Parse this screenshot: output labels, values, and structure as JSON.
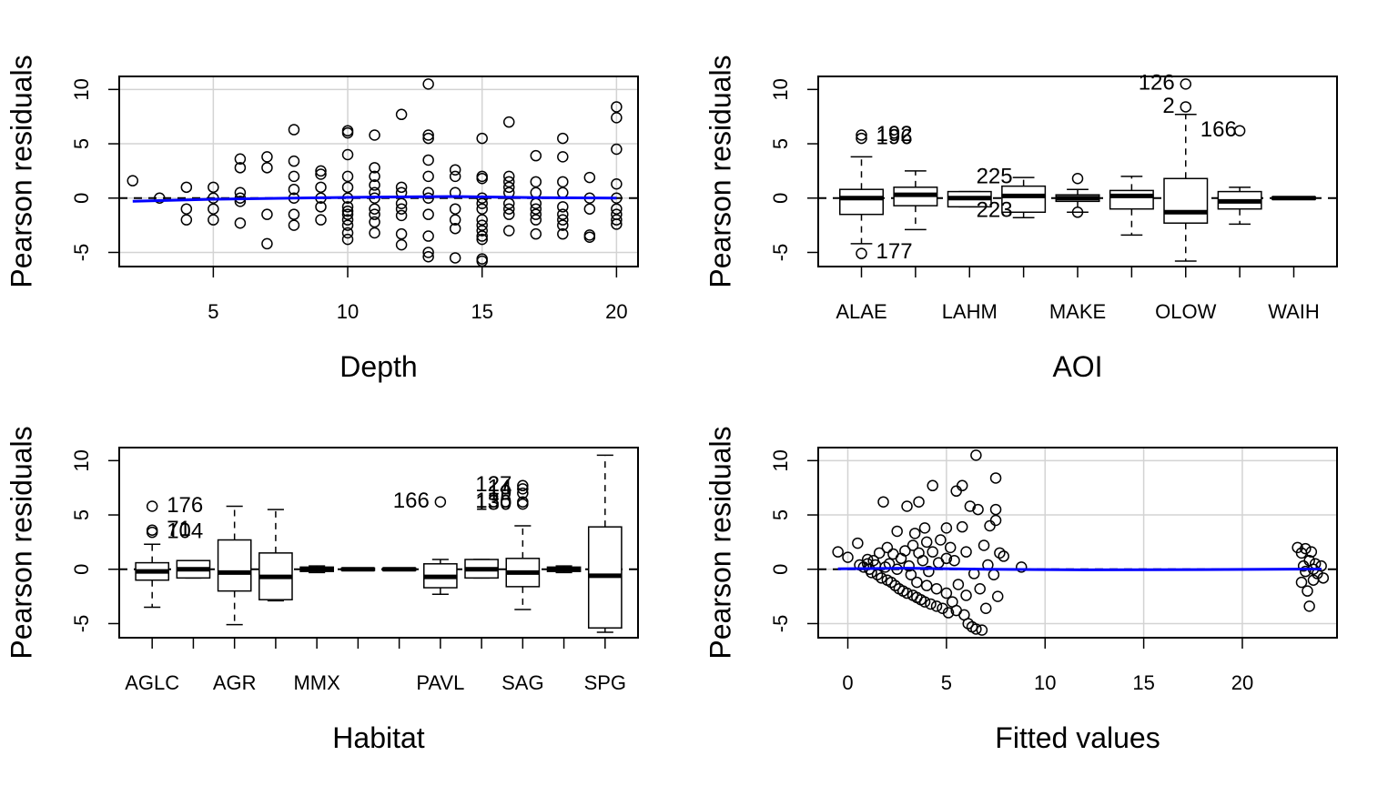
{
  "figure": {
    "background": "#ffffff",
    "point_color": "#000000",
    "smooth_color": "#0000ff",
    "grid_color": "#d3d3d3"
  },
  "chart_data": [
    {
      "type": "scatter",
      "xlabel": "Depth",
      "ylabel": "Pearson residuals",
      "xlim": [
        1.5,
        20.8
      ],
      "ylim": [
        -6.3,
        11.2
      ],
      "xticks": [
        5,
        10,
        15,
        20
      ],
      "yticks": [
        -5,
        0,
        5,
        10
      ],
      "grid": true,
      "reference_line_y": 0,
      "points": [
        [
          2,
          1.6
        ],
        [
          3,
          0
        ],
        [
          4,
          1
        ],
        [
          4,
          -1
        ],
        [
          4,
          -2
        ],
        [
          5,
          1
        ],
        [
          5,
          0
        ],
        [
          5,
          -1
        ],
        [
          5,
          -2
        ],
        [
          6,
          3.6
        ],
        [
          6,
          2.8
        ],
        [
          6,
          0.5
        ],
        [
          6,
          0
        ],
        [
          6,
          -0.3
        ],
        [
          6,
          -2.3
        ],
        [
          7,
          3.8
        ],
        [
          7,
          2.8
        ],
        [
          7,
          -1.5
        ],
        [
          7,
          -4.2
        ],
        [
          8,
          6.3
        ],
        [
          8,
          3.4
        ],
        [
          8,
          2
        ],
        [
          8,
          0.8
        ],
        [
          8,
          0
        ],
        [
          8,
          -1.5
        ],
        [
          8,
          -2.5
        ],
        [
          9,
          2.5
        ],
        [
          9,
          2.2
        ],
        [
          9,
          1
        ],
        [
          9,
          0
        ],
        [
          9,
          -0.8
        ],
        [
          9,
          -2
        ],
        [
          10,
          6.2
        ],
        [
          10,
          6
        ],
        [
          10,
          4
        ],
        [
          10,
          2
        ],
        [
          10,
          1
        ],
        [
          10,
          0
        ],
        [
          10,
          -0.8
        ],
        [
          10,
          -1.2
        ],
        [
          10,
          -1.5
        ],
        [
          10,
          -2
        ],
        [
          10,
          -2.5
        ],
        [
          10,
          -3.2
        ],
        [
          10,
          -3.8
        ],
        [
          11,
          5.8
        ],
        [
          11,
          2.8
        ],
        [
          11,
          2
        ],
        [
          11,
          1.2
        ],
        [
          11,
          0.5
        ],
        [
          11,
          0
        ],
        [
          11,
          -1
        ],
        [
          11,
          -1.5
        ],
        [
          11,
          -2.2
        ],
        [
          11,
          -3.2
        ],
        [
          12,
          7.7
        ],
        [
          12,
          1
        ],
        [
          12,
          0.5
        ],
        [
          12,
          -0.5
        ],
        [
          12,
          -1
        ],
        [
          12,
          -1.6
        ],
        [
          12,
          -3.3
        ],
        [
          12,
          -4.3
        ],
        [
          13,
          10.5
        ],
        [
          13,
          5.8
        ],
        [
          13,
          5.5
        ],
        [
          13,
          3.5
        ],
        [
          13,
          2
        ],
        [
          13,
          0.5
        ],
        [
          13,
          0
        ],
        [
          13,
          -1.5
        ],
        [
          13,
          -3.5
        ],
        [
          13,
          -5
        ],
        [
          13,
          -5.4
        ],
        [
          14,
          2.6
        ],
        [
          14,
          2
        ],
        [
          14,
          0.5
        ],
        [
          14,
          -1
        ],
        [
          14,
          -2
        ],
        [
          14,
          -2.8
        ],
        [
          14,
          -5.5
        ],
        [
          15,
          5.5
        ],
        [
          15,
          2
        ],
        [
          15,
          1.8
        ],
        [
          15,
          0
        ],
        [
          15,
          -0.5
        ],
        [
          15,
          -1
        ],
        [
          15,
          -2
        ],
        [
          15,
          -2.5
        ],
        [
          15,
          -3
        ],
        [
          15,
          -3.5
        ],
        [
          15,
          -3.8
        ],
        [
          15,
          -5.6
        ],
        [
          15,
          -5.8
        ],
        [
          16,
          7
        ],
        [
          16,
          2
        ],
        [
          16,
          1.5
        ],
        [
          16,
          1
        ],
        [
          16,
          0.5
        ],
        [
          16,
          -0.5
        ],
        [
          16,
          -1
        ],
        [
          16,
          -1.5
        ],
        [
          16,
          -3
        ],
        [
          17,
          3.9
        ],
        [
          17,
          1.5
        ],
        [
          17,
          0.5
        ],
        [
          17,
          -0.5
        ],
        [
          17,
          -1
        ],
        [
          17,
          -1.5
        ],
        [
          17,
          -2
        ],
        [
          17,
          -3.3
        ],
        [
          18,
          5.5
        ],
        [
          18,
          3.8
        ],
        [
          18,
          1.5
        ],
        [
          18,
          0.5
        ],
        [
          18,
          -0.8
        ],
        [
          18,
          -1.5
        ],
        [
          18,
          -2
        ],
        [
          18,
          -2.5
        ],
        [
          18,
          -3.3
        ],
        [
          19,
          1.9
        ],
        [
          19,
          0
        ],
        [
          19,
          -1
        ],
        [
          19,
          -3.4
        ],
        [
          19,
          -3.6
        ],
        [
          20,
          8.4
        ],
        [
          20,
          7.4
        ],
        [
          20,
          4.5
        ],
        [
          20,
          1.3
        ],
        [
          20,
          0
        ],
        [
          20,
          -1
        ],
        [
          20,
          -1.5
        ],
        [
          20,
          -2
        ],
        [
          20,
          -2.4
        ]
      ],
      "smooth": [
        [
          2,
          -0.3
        ],
        [
          5,
          -0.1
        ],
        [
          8,
          0
        ],
        [
          11,
          0.1
        ],
        [
          14,
          0.15
        ],
        [
          17,
          0.05
        ],
        [
          20,
          0
        ]
      ]
    },
    {
      "type": "boxplot",
      "xlabel": "AOI",
      "ylabel": "Pearson residuals",
      "ylim": [
        -6.3,
        11.2
      ],
      "yticks": [
        -5,
        0,
        5,
        10
      ],
      "tick_labels": [
        "ALAE",
        "LAHM",
        "MAKE",
        "OLOW",
        "WAIH"
      ],
      "reference_line_y": 0,
      "boxes": [
        {
          "min": -4.2,
          "q1": -1.5,
          "med": 0,
          "q3": 0.8,
          "max": 3.8,
          "out": [
            5.8,
            5.5,
            -5.1
          ]
        },
        {
          "min": -2.9,
          "q1": -0.7,
          "med": 0.3,
          "q3": 1,
          "max": 2.5,
          "out": []
        },
        {
          "min": -0.8,
          "q1": -0.8,
          "med": 0,
          "q3": 0.6,
          "max": 0.6,
          "out": []
        },
        {
          "min": -1.8,
          "q1": -1.3,
          "med": 0.2,
          "q3": 1.1,
          "max": 1.9,
          "out": []
        },
        {
          "min": -1.3,
          "q1": -0.3,
          "med": 0,
          "q3": 0.3,
          "max": 0.8,
          "out": [
            1.8,
            -1.3
          ]
        },
        {
          "min": -3.4,
          "q1": -1,
          "med": 0.2,
          "q3": 0.7,
          "max": 2,
          "out": []
        },
        {
          "min": -5.8,
          "q1": -2.3,
          "med": -1.3,
          "q3": 1.8,
          "max": 7.7,
          "out": [
            10.5,
            8.4
          ]
        },
        {
          "min": -2.4,
          "q1": -1,
          "med": -0.3,
          "q3": 0.6,
          "max": 1,
          "out": [
            6.2
          ]
        },
        {
          "min": -0.1,
          "q1": -0.1,
          "med": 0,
          "q3": 0.1,
          "max": 0.1,
          "out": []
        }
      ],
      "labels": [
        {
          "box": 1,
          "y": 5.8,
          "text": "192",
          "align": "start"
        },
        {
          "box": 1,
          "y": 5.5,
          "text": "196",
          "align": "start"
        },
        {
          "box": 1,
          "y": -5,
          "text": "177",
          "align": "start"
        },
        {
          "box": 4,
          "y": 1.9,
          "text": "225",
          "align": "end"
        },
        {
          "box": 4,
          "y": -1.2,
          "text": "223",
          "align": "end"
        },
        {
          "box": 7,
          "y": 10.5,
          "text": "126",
          "align": "end-far"
        },
        {
          "box": 7,
          "y": 8.4,
          "text": "2",
          "align": "end"
        },
        {
          "box": 7,
          "y": 6.2,
          "text": "166",
          "align": "start"
        }
      ]
    },
    {
      "type": "boxplot",
      "xlabel": "Habitat",
      "ylabel": "Pearson residuals",
      "ylim": [
        -6.3,
        11.2
      ],
      "yticks": [
        -5,
        0,
        5,
        10
      ],
      "tick_labels": [
        "AGLC",
        "AGR",
        "MMX",
        "PAVL",
        "SAG",
        "SPG"
      ],
      "tick_label_boxes": [
        1,
        3,
        5,
        8,
        10,
        12
      ],
      "reference_line_y": 0,
      "boxes": [
        {
          "min": -3.5,
          "q1": -1,
          "med": -0.2,
          "q3": 0.6,
          "max": 2.3,
          "out": [
            5.8,
            3.6,
            3.4
          ]
        },
        {
          "min": -0.8,
          "q1": -0.8,
          "med": 0,
          "q3": 0.8,
          "max": 0.8,
          "out": []
        },
        {
          "min": -5.1,
          "q1": -2,
          "med": -0.3,
          "q3": 2.7,
          "max": 5.8,
          "out": []
        },
        {
          "min": -2.9,
          "q1": -2.8,
          "med": -0.7,
          "q3": 1.5,
          "max": 5.5,
          "out": []
        },
        {
          "min": -0.3,
          "q1": -0.2,
          "med": 0,
          "q3": 0.2,
          "max": 0.3,
          "out": []
        },
        {
          "min": -0.1,
          "q1": -0.1,
          "med": 0,
          "q3": 0.1,
          "max": 0.1,
          "out": []
        },
        {
          "min": -0.1,
          "q1": -0.1,
          "med": 0,
          "q3": 0.1,
          "max": 0.1,
          "out": []
        },
        {
          "min": -2.3,
          "q1": -1.7,
          "med": -0.7,
          "q3": 0.5,
          "max": 0.9,
          "out": [
            6.2
          ]
        },
        {
          "min": -0.8,
          "q1": -0.8,
          "med": 0,
          "q3": 0.9,
          "max": 0.9,
          "out": []
        },
        {
          "min": -3.7,
          "q1": -1.6,
          "med": -0.3,
          "q3": 1,
          "max": 4,
          "out": [
            7.7,
            7.4,
            7,
            6.2,
            6
          ]
        },
        {
          "min": -0.3,
          "q1": -0.2,
          "med": 0,
          "q3": 0.2,
          "max": 0.3,
          "out": []
        },
        {
          "min": -5.8,
          "q1": -5.4,
          "med": -0.6,
          "q3": 3.9,
          "max": 10.5,
          "out": []
        }
      ],
      "labels": [
        {
          "box": 1,
          "y": 5.8,
          "text": "176",
          "align": "start"
        },
        {
          "box": 1,
          "y": 3.6,
          "text": "71",
          "align": "start"
        },
        {
          "box": 1,
          "y": 3.4,
          "text": "104",
          "align": "start"
        },
        {
          "box": 8,
          "y": 6.2,
          "text": "166",
          "align": "end-far"
        },
        {
          "box": 10,
          "y": 7.7,
          "text": "127",
          "align": "end"
        },
        {
          "box": 10,
          "y": 7.4,
          "text": "14",
          "align": "end"
        },
        {
          "box": 10,
          "y": 6.9,
          "text": "19",
          "align": "end"
        },
        {
          "box": 10,
          "y": 6.2,
          "text": "135",
          "align": "end"
        },
        {
          "box": 10,
          "y": 6,
          "text": "130",
          "align": "end"
        }
      ]
    },
    {
      "type": "scatter",
      "xlabel": "Fitted values",
      "ylabel": "Pearson residuals",
      "xlim": [
        -1.5,
        24.8
      ],
      "ylim": [
        -6.3,
        11.2
      ],
      "xticks": [
        0,
        5,
        10,
        15,
        20
      ],
      "yticks": [
        -5,
        0,
        5,
        10
      ],
      "grid": true,
      "reference_line_y": 0,
      "points": [
        [
          -0.5,
          1.6
        ],
        [
          0,
          1.1
        ],
        [
          0.5,
          2.4
        ],
        [
          0.6,
          0.4
        ],
        [
          0.8,
          0.2
        ],
        [
          1,
          0.9
        ],
        [
          1,
          0.5
        ],
        [
          1.1,
          0
        ],
        [
          1.2,
          -0.3
        ],
        [
          1.3,
          0.8
        ],
        [
          1.4,
          0.4
        ],
        [
          1.5,
          -0.5
        ],
        [
          1.6,
          1.5
        ],
        [
          1.7,
          -0.8
        ],
        [
          1.8,
          6.2
        ],
        [
          1.9,
          0.2
        ],
        [
          2,
          2
        ],
        [
          2,
          -1
        ],
        [
          2.1,
          0.5
        ],
        [
          2.2,
          -1.2
        ],
        [
          2.3,
          1.4
        ],
        [
          2.4,
          -1.5
        ],
        [
          2.5,
          3.5
        ],
        [
          2.5,
          0
        ],
        [
          2.6,
          -1.8
        ],
        [
          2.7,
          1
        ],
        [
          2.8,
          -2
        ],
        [
          2.9,
          1.7
        ],
        [
          3,
          -2.2
        ],
        [
          3,
          5.8
        ],
        [
          3.1,
          0.3
        ],
        [
          3.2,
          -0.5
        ],
        [
          3.3,
          2.2
        ],
        [
          3.3,
          -2.4
        ],
        [
          3.4,
          3.3
        ],
        [
          3.5,
          -1.2
        ],
        [
          3.5,
          -2.6
        ],
        [
          3.6,
          6.2
        ],
        [
          3.6,
          1.5
        ],
        [
          3.7,
          -2.8
        ],
        [
          3.8,
          0.8
        ],
        [
          3.9,
          3.8
        ],
        [
          3.9,
          -3
        ],
        [
          4,
          -1.5
        ],
        [
          4,
          2.5
        ],
        [
          4.1,
          -0.2
        ],
        [
          4.2,
          -3.2
        ],
        [
          4.3,
          7.7
        ],
        [
          4.3,
          1.6
        ],
        [
          4.5,
          -1.8
        ],
        [
          4.5,
          -3.4
        ],
        [
          4.6,
          0.6
        ],
        [
          4.7,
          2.7
        ],
        [
          4.8,
          -3.6
        ],
        [
          5,
          3.8
        ],
        [
          5,
          1
        ],
        [
          5,
          -2.2
        ],
        [
          5.1,
          -4
        ],
        [
          5.2,
          2
        ],
        [
          5.3,
          -3
        ],
        [
          5.4,
          0.8
        ],
        [
          5.5,
          7.2
        ],
        [
          5.5,
          -3.8
        ],
        [
          5.6,
          -1.4
        ],
        [
          5.8,
          7.7
        ],
        [
          5.8,
          3.9
        ],
        [
          5.9,
          -4.2
        ],
        [
          6,
          -2.4
        ],
        [
          6,
          1.6
        ],
        [
          6.1,
          -5
        ],
        [
          6.2,
          5.8
        ],
        [
          6.3,
          -5.3
        ],
        [
          6.4,
          -0.4
        ],
        [
          6.5,
          10.5
        ],
        [
          6.5,
          -5.5
        ],
        [
          6.6,
          5.5
        ],
        [
          6.7,
          -1.8
        ],
        [
          6.8,
          -5.6
        ],
        [
          6.9,
          2.2
        ],
        [
          7,
          -3.6
        ],
        [
          7.1,
          0.4
        ],
        [
          7.2,
          4
        ],
        [
          7.4,
          -0.5
        ],
        [
          7.5,
          8.4
        ],
        [
          7.5,
          5.5
        ],
        [
          7.5,
          4.5
        ],
        [
          7.6,
          -2.5
        ],
        [
          7.7,
          1.5
        ],
        [
          7.9,
          1.2
        ],
        [
          8.8,
          0.2
        ],
        [
          22.8,
          2
        ],
        [
          23,
          1.5
        ],
        [
          23,
          -1.2
        ],
        [
          23.1,
          0.3
        ],
        [
          23.2,
          1.9
        ],
        [
          23.2,
          -0.2
        ],
        [
          23.3,
          -2
        ],
        [
          23.4,
          0.8
        ],
        [
          23.4,
          -3.4
        ],
        [
          23.5,
          1.6
        ],
        [
          23.6,
          -1
        ],
        [
          23.6,
          0
        ],
        [
          23.7,
          0.5
        ],
        [
          23.8,
          -0.4
        ],
        [
          24,
          0.3
        ],
        [
          24.1,
          -0.8
        ]
      ],
      "smooth": [
        [
          -0.5,
          0.05
        ],
        [
          3,
          0.1
        ],
        [
          7,
          0
        ],
        [
          12,
          -0.05
        ],
        [
          18,
          -0.03
        ],
        [
          24,
          0.02
        ]
      ]
    }
  ]
}
